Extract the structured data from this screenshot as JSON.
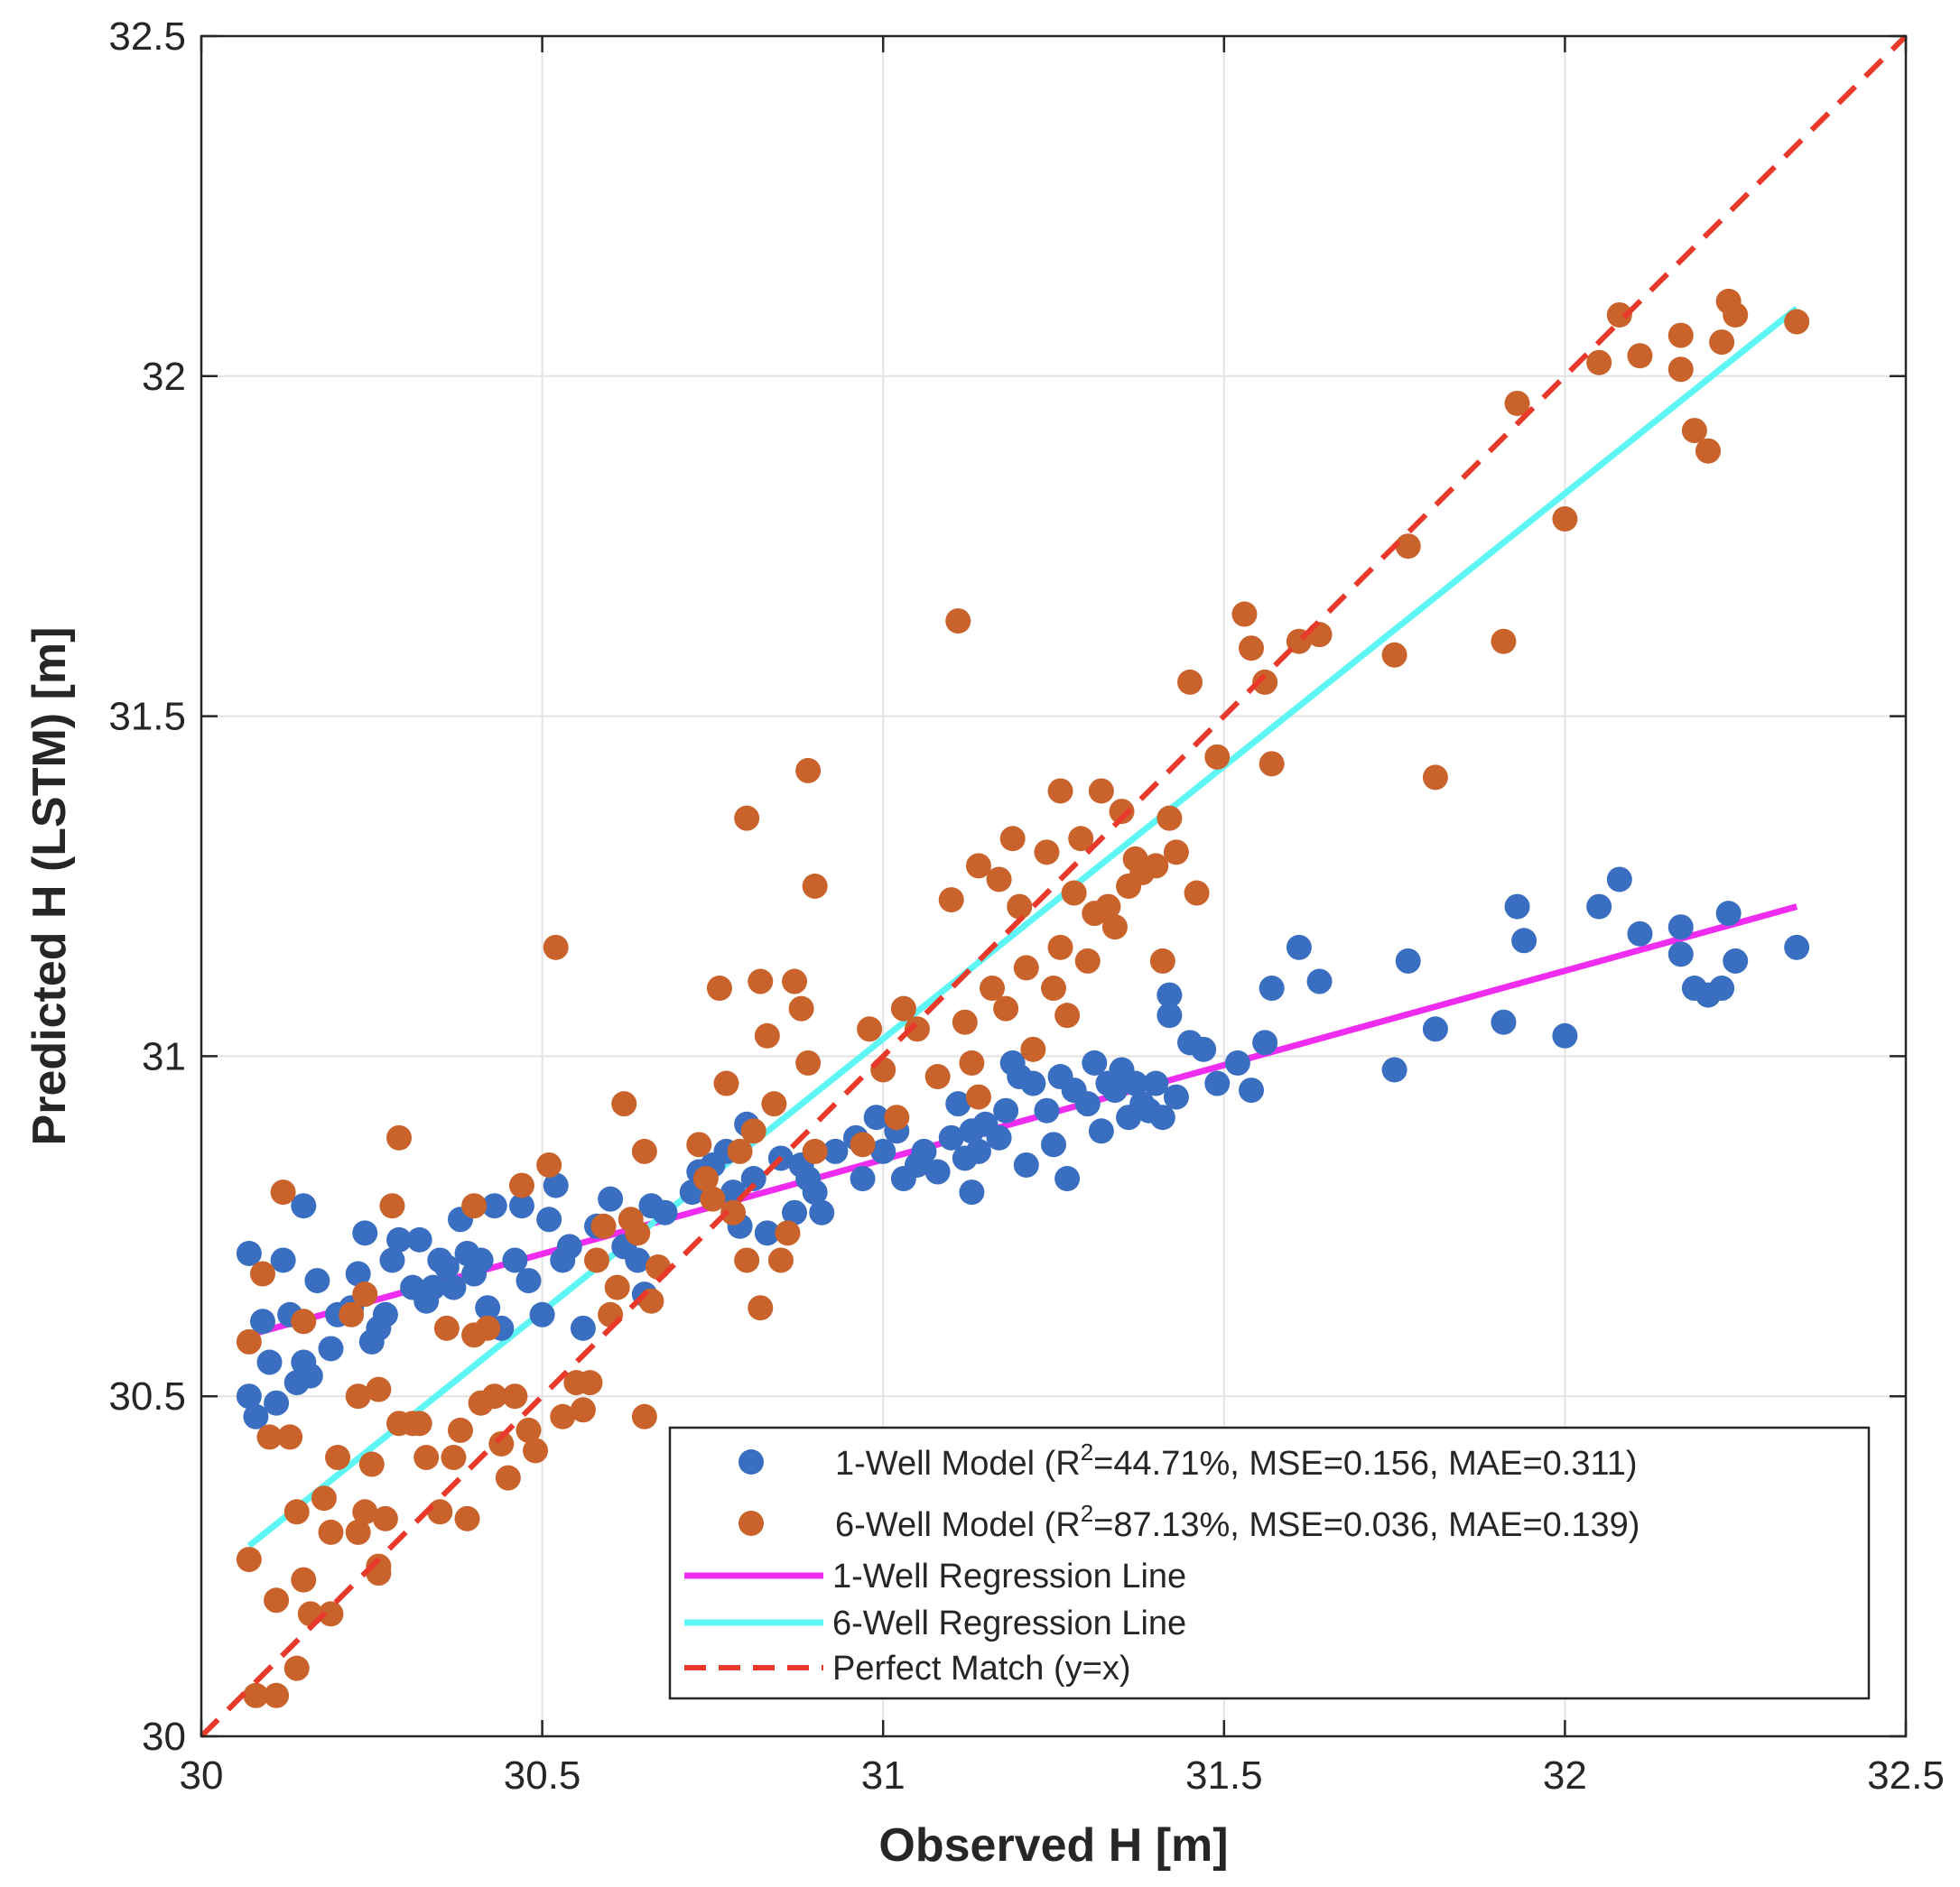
{
  "chart_data": {
    "type": "scatter",
    "xlabel": "Observed H [m]",
    "ylabel": "Predicted H (LSTM) [m]",
    "xlim": [
      30,
      32.5
    ],
    "ylim": [
      30,
      32.5
    ],
    "x_ticks": [
      30,
      30.5,
      31,
      31.5,
      32,
      32.5
    ],
    "y_ticks": [
      30,
      30.5,
      31,
      31.5,
      32,
      32.5
    ],
    "x_tick_labels": [
      "30",
      "30.5",
      "31",
      "31.5",
      "32",
      "32.5"
    ],
    "y_tick_labels": [
      "30",
      "30.5",
      "31",
      "31.5",
      "32",
      "32.5"
    ],
    "grid": true,
    "legend_position": "bottom-right",
    "colors": {
      "one_well": "#3A6EC0",
      "six_well": "#C9622B",
      "one_well_line": "#F02CF0",
      "six_well_line": "#5EF5F5",
      "perfect": "#E8392B"
    },
    "legend": {
      "one_well": {
        "prefix": "1-Well  Model  (R",
        "sup": "2",
        "suffix": "=44.71%,  MSE=0.156,  MAE=0.311)"
      },
      "six_well": {
        "prefix": "6-Well  Model  (R",
        "sup": "2",
        "suffix": "=87.13%,  MSE=0.036,  MAE=0.139)"
      },
      "one_well_line": "1-Well Regression Line",
      "six_well_line": "6-Well Regression Line",
      "perfect": "Perfect Match (y=x)"
    },
    "lines": {
      "one_well": {
        "x": [
          30.07,
          32.34
        ],
        "y": [
          30.59,
          31.22
        ]
      },
      "six_well": {
        "x": [
          30.07,
          32.34
        ],
        "y": [
          30.28,
          32.1
        ]
      },
      "perfect": {
        "x": [
          30,
          32.5
        ],
        "y": [
          30,
          32.5
        ]
      }
    },
    "series": [
      {
        "name": "1-Well Model",
        "points": [
          [
            30.07,
            30.71
          ],
          [
            30.07,
            30.5
          ],
          [
            30.08,
            30.47
          ],
          [
            30.09,
            30.61
          ],
          [
            30.1,
            30.55
          ],
          [
            30.11,
            30.49
          ],
          [
            30.12,
            30.7
          ],
          [
            30.13,
            30.62
          ],
          [
            30.14,
            30.52
          ],
          [
            30.15,
            30.55
          ],
          [
            30.15,
            30.78
          ],
          [
            30.16,
            30.53
          ],
          [
            30.17,
            30.67
          ],
          [
            30.19,
            30.57
          ],
          [
            30.2,
            30.62
          ],
          [
            30.22,
            30.63
          ],
          [
            30.23,
            30.68
          ],
          [
            30.24,
            30.74
          ],
          [
            30.25,
            30.58
          ],
          [
            30.26,
            30.6
          ],
          [
            30.27,
            30.62
          ],
          [
            30.28,
            30.7
          ],
          [
            30.29,
            30.73
          ],
          [
            30.31,
            30.66
          ],
          [
            30.32,
            30.73
          ],
          [
            30.33,
            30.64
          ],
          [
            30.34,
            30.66
          ],
          [
            30.35,
            30.7
          ],
          [
            30.36,
            30.69
          ],
          [
            30.37,
            30.66
          ],
          [
            30.38,
            30.76
          ],
          [
            30.39,
            30.71
          ],
          [
            30.4,
            30.68
          ],
          [
            30.41,
            30.7
          ],
          [
            30.42,
            30.63
          ],
          [
            30.43,
            30.78
          ],
          [
            30.44,
            30.6
          ],
          [
            30.46,
            30.7
          ],
          [
            30.47,
            30.78
          ],
          [
            30.48,
            30.67
          ],
          [
            30.5,
            30.62
          ],
          [
            30.51,
            30.76
          ],
          [
            30.52,
            30.81
          ],
          [
            30.53,
            30.7
          ],
          [
            30.54,
            30.72
          ],
          [
            30.56,
            30.6
          ],
          [
            30.58,
            30.75
          ],
          [
            30.6,
            30.79
          ],
          [
            30.62,
            30.72
          ],
          [
            30.64,
            30.7
          ],
          [
            30.65,
            30.65
          ],
          [
            30.66,
            30.78
          ],
          [
            30.68,
            30.77
          ],
          [
            30.72,
            30.8
          ],
          [
            30.73,
            30.83
          ],
          [
            30.75,
            30.84
          ],
          [
            30.77,
            30.86
          ],
          [
            30.78,
            30.8
          ],
          [
            30.79,
            30.75
          ],
          [
            30.8,
            30.9
          ],
          [
            30.81,
            30.82
          ],
          [
            30.83,
            30.74
          ],
          [
            30.85,
            30.85
          ],
          [
            30.87,
            30.77
          ],
          [
            30.88,
            30.84
          ],
          [
            30.89,
            30.82
          ],
          [
            30.9,
            30.8
          ],
          [
            30.91,
            30.77
          ],
          [
            30.93,
            30.86
          ],
          [
            30.96,
            30.88
          ],
          [
            30.97,
            30.82
          ],
          [
            30.99,
            30.91
          ],
          [
            31,
            30.86
          ],
          [
            31.02,
            30.89
          ],
          [
            31.03,
            30.82
          ],
          [
            31.05,
            30.84
          ],
          [
            31.06,
            30.86
          ],
          [
            31.08,
            30.83
          ],
          [
            31.1,
            30.88
          ],
          [
            31.11,
            30.93
          ],
          [
            31.12,
            30.85
          ],
          [
            31.13,
            30.89
          ],
          [
            31.13,
            30.8
          ],
          [
            31.14,
            30.86
          ],
          [
            31.15,
            30.9
          ],
          [
            31.17,
            30.88
          ],
          [
            31.18,
            30.92
          ],
          [
            31.19,
            30.99
          ],
          [
            31.2,
            30.97
          ],
          [
            31.21,
            30.84
          ],
          [
            31.22,
            30.96
          ],
          [
            31.24,
            30.92
          ],
          [
            31.25,
            30.87
          ],
          [
            31.26,
            30.97
          ],
          [
            31.27,
            30.82
          ],
          [
            31.28,
            30.95
          ],
          [
            31.3,
            30.93
          ],
          [
            31.31,
            30.99
          ],
          [
            31.32,
            30.89
          ],
          [
            31.33,
            30.96
          ],
          [
            31.34,
            30.95
          ],
          [
            31.35,
            30.98
          ],
          [
            31.36,
            30.91
          ],
          [
            31.37,
            30.96
          ],
          [
            31.38,
            30.93
          ],
          [
            31.39,
            30.92
          ],
          [
            31.4,
            30.96
          ],
          [
            31.41,
            30.91
          ],
          [
            31.42,
            31.06
          ],
          [
            31.42,
            31.09
          ],
          [
            31.43,
            30.94
          ],
          [
            31.45,
            31.02
          ],
          [
            31.47,
            31.01
          ],
          [
            31.49,
            30.96
          ],
          [
            31.52,
            30.99
          ],
          [
            31.54,
            30.95
          ],
          [
            31.56,
            31.02
          ],
          [
            31.57,
            31.1
          ],
          [
            31.61,
            31.16
          ],
          [
            31.64,
            31.11
          ],
          [
            31.75,
            30.98
          ],
          [
            31.77,
            31.14
          ],
          [
            31.81,
            31.04
          ],
          [
            31.91,
            31.05
          ],
          [
            31.93,
            31.22
          ],
          [
            31.94,
            31.17
          ],
          [
            32,
            31.03
          ],
          [
            32.05,
            31.22
          ],
          [
            32.08,
            31.26
          ],
          [
            32.11,
            31.18
          ],
          [
            32.17,
            31.19
          ],
          [
            32.17,
            31.15
          ],
          [
            32.19,
            31.1
          ],
          [
            32.21,
            31.09
          ],
          [
            32.23,
            31.1
          ],
          [
            32.24,
            31.21
          ],
          [
            32.25,
            31.14
          ],
          [
            32.34,
            31.16
          ]
        ]
      },
      {
        "name": "6-Well Model",
        "points": [
          [
            30.07,
            30.58
          ],
          [
            30.07,
            30.26
          ],
          [
            30.08,
            30.06
          ],
          [
            30.09,
            30.68
          ],
          [
            30.1,
            30.44
          ],
          [
            30.11,
            30.2
          ],
          [
            30.11,
            30.06
          ],
          [
            30.12,
            30.8
          ],
          [
            30.13,
            30.44
          ],
          [
            30.14,
            30.33
          ],
          [
            30.14,
            30.1
          ],
          [
            30.15,
            30.23
          ],
          [
            30.15,
            30.61
          ],
          [
            30.16,
            30.18
          ],
          [
            30.18,
            30.35
          ],
          [
            30.19,
            30.18
          ],
          [
            30.19,
            30.3
          ],
          [
            30.2,
            30.41
          ],
          [
            30.22,
            30.62
          ],
          [
            30.23,
            30.5
          ],
          [
            30.23,
            30.3
          ],
          [
            30.24,
            30.65
          ],
          [
            30.24,
            30.33
          ],
          [
            30.25,
            30.4
          ],
          [
            30.26,
            30.25
          ],
          [
            30.26,
            30.51
          ],
          [
            30.26,
            30.24
          ],
          [
            30.27,
            30.32
          ],
          [
            30.28,
            30.78
          ],
          [
            30.29,
            30.46
          ],
          [
            30.29,
            30.88
          ],
          [
            30.31,
            30.46
          ],
          [
            30.32,
            30.46
          ],
          [
            30.33,
            30.41
          ],
          [
            30.35,
            30.33
          ],
          [
            30.36,
            30.6
          ],
          [
            30.37,
            30.41
          ],
          [
            30.38,
            30.45
          ],
          [
            30.39,
            30.32
          ],
          [
            30.4,
            30.59
          ],
          [
            30.4,
            30.78
          ],
          [
            30.41,
            30.49
          ],
          [
            30.42,
            30.6
          ],
          [
            30.43,
            30.5
          ],
          [
            30.44,
            30.43
          ],
          [
            30.45,
            30.38
          ],
          [
            30.46,
            30.5
          ],
          [
            30.47,
            30.81
          ],
          [
            30.48,
            30.45
          ],
          [
            30.49,
            30.42
          ],
          [
            30.51,
            30.84
          ],
          [
            30.52,
            31.16
          ],
          [
            30.53,
            30.47
          ],
          [
            30.55,
            30.52
          ],
          [
            30.56,
            30.48
          ],
          [
            30.57,
            30.52
          ],
          [
            30.58,
            30.7
          ],
          [
            30.59,
            30.75
          ],
          [
            30.6,
            30.62
          ],
          [
            30.61,
            30.66
          ],
          [
            30.62,
            30.93
          ],
          [
            30.63,
            30.76
          ],
          [
            30.64,
            30.74
          ],
          [
            30.65,
            30.86
          ],
          [
            30.65,
            30.47
          ],
          [
            30.66,
            30.64
          ],
          [
            30.67,
            30.69
          ],
          [
            30.73,
            30.87
          ],
          [
            30.74,
            30.82
          ],
          [
            30.75,
            30.79
          ],
          [
            30.76,
            31.1
          ],
          [
            30.77,
            30.96
          ],
          [
            30.78,
            30.77
          ],
          [
            30.79,
            30.86
          ],
          [
            30.8,
            31.35
          ],
          [
            30.8,
            30.7
          ],
          [
            30.81,
            30.89
          ],
          [
            30.82,
            31.11
          ],
          [
            30.82,
            30.63
          ],
          [
            30.83,
            31.03
          ],
          [
            30.84,
            30.93
          ],
          [
            30.85,
            30.7
          ],
          [
            30.86,
            30.74
          ],
          [
            30.87,
            31.11
          ],
          [
            30.88,
            31.07
          ],
          [
            30.89,
            31.42
          ],
          [
            30.89,
            30.99
          ],
          [
            30.9,
            31.25
          ],
          [
            30.9,
            30.86
          ],
          [
            30.97,
            30.87
          ],
          [
            30.98,
            31.04
          ],
          [
            31,
            30.98
          ],
          [
            31.02,
            30.91
          ],
          [
            31.03,
            31.07
          ],
          [
            31.05,
            31.04
          ],
          [
            31.08,
            30.97
          ],
          [
            31.1,
            31.23
          ],
          [
            31.11,
            31.64
          ],
          [
            31.12,
            31.05
          ],
          [
            31.13,
            30.99
          ],
          [
            31.14,
            30.94
          ],
          [
            31.14,
            31.28
          ],
          [
            31.16,
            31.1
          ],
          [
            31.17,
            31.26
          ],
          [
            31.18,
            31.07
          ],
          [
            31.19,
            31.32
          ],
          [
            31.2,
            31.22
          ],
          [
            31.21,
            31.13
          ],
          [
            31.22,
            31.01
          ],
          [
            31.24,
            31.3
          ],
          [
            31.25,
            31.1
          ],
          [
            31.26,
            31.39
          ],
          [
            31.26,
            31.16
          ],
          [
            31.27,
            31.06
          ],
          [
            31.28,
            31.24
          ],
          [
            31.29,
            31.32
          ],
          [
            31.3,
            31.14
          ],
          [
            31.31,
            31.21
          ],
          [
            31.32,
            31.39
          ],
          [
            31.33,
            31.22
          ],
          [
            31.34,
            31.19
          ],
          [
            31.35,
            31.36
          ],
          [
            31.36,
            31.25
          ],
          [
            31.37,
            31.29
          ],
          [
            31.38,
            31.27
          ],
          [
            31.4,
            31.28
          ],
          [
            31.41,
            31.14
          ],
          [
            31.42,
            31.35
          ],
          [
            31.43,
            31.3
          ],
          [
            31.45,
            31.55
          ],
          [
            31.46,
            31.24
          ],
          [
            31.49,
            31.44
          ],
          [
            31.53,
            31.65
          ],
          [
            31.54,
            31.6
          ],
          [
            31.56,
            31.55
          ],
          [
            31.57,
            31.43
          ],
          [
            31.61,
            31.61
          ],
          [
            31.64,
            31.62
          ],
          [
            31.75,
            31.59
          ],
          [
            31.77,
            31.75
          ],
          [
            31.81,
            31.41
          ],
          [
            31.91,
            31.61
          ],
          [
            31.93,
            31.96
          ],
          [
            32,
            31.79
          ],
          [
            32.05,
            32.02
          ],
          [
            32.08,
            32.09
          ],
          [
            32.11,
            32.03
          ],
          [
            32.17,
            32.01
          ],
          [
            32.17,
            32.06
          ],
          [
            32.19,
            31.92
          ],
          [
            32.21,
            31.89
          ],
          [
            32.23,
            32.05
          ],
          [
            32.24,
            32.11
          ],
          [
            32.25,
            32.09
          ],
          [
            32.34,
            32.08
          ]
        ]
      }
    ]
  }
}
